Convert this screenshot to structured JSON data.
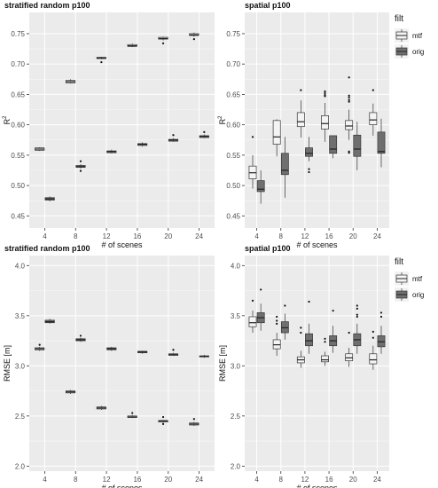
{
  "figure": {
    "x_values": [
      4,
      8,
      12,
      16,
      20,
      24
    ],
    "xlabel": "# of scenes",
    "legend_title": "filt",
    "series_names": [
      "mtf",
      "orig"
    ],
    "series_colors": {
      "mtf": "#f4f4f4",
      "orig": "#6f6f6f"
    },
    "panel_background": "#ebebeb",
    "grid_color": "#ffffff"
  },
  "chart_data": [
    {
      "type": "box",
      "title": "stratified random p100",
      "ylabel": "R",
      "ylabel_superscript": "2",
      "xlabel": "# of scenes",
      "ylim": [
        0.43,
        0.785
      ],
      "yticks": [
        0.45,
        0.5,
        0.55,
        0.6,
        0.65,
        0.7,
        0.75
      ],
      "ytick_labels": [
        "0.45",
        "0.50",
        "0.55",
        "0.60",
        "0.65",
        "0.70",
        "0.75"
      ],
      "xticks": [
        "4",
        "8",
        "12",
        "16",
        "20",
        "24"
      ],
      "legend": false,
      "series": [
        {
          "name": "mtf",
          "boxes": [
            {
              "x": 4,
              "min": 0.557,
              "q1": 0.558,
              "median": 0.56,
              "q3": 0.562,
              "max": 0.563,
              "outliers": []
            },
            {
              "x": 8,
              "min": 0.668,
              "q1": 0.669,
              "median": 0.671,
              "q3": 0.673,
              "max": 0.675,
              "outliers": []
            },
            {
              "x": 12,
              "min": 0.708,
              "q1": 0.709,
              "median": 0.71,
              "q3": 0.711,
              "max": 0.712,
              "outliers": [
                0.703
              ]
            },
            {
              "x": 16,
              "min": 0.728,
              "q1": 0.729,
              "median": 0.73,
              "q3": 0.732,
              "max": 0.734,
              "outliers": []
            },
            {
              "x": 20,
              "min": 0.739,
              "q1": 0.741,
              "median": 0.742,
              "q3": 0.744,
              "max": 0.745,
              "outliers": [
                0.734
              ]
            },
            {
              "x": 24,
              "min": 0.745,
              "q1": 0.747,
              "median": 0.748,
              "q3": 0.75,
              "max": 0.752,
              "outliers": [
                0.741
              ]
            }
          ]
        },
        {
          "name": "orig",
          "boxes": [
            {
              "x": 4,
              "min": 0.474,
              "q1": 0.476,
              "median": 0.478,
              "q3": 0.48,
              "max": 0.482,
              "outliers": []
            },
            {
              "x": 8,
              "min": 0.528,
              "q1": 0.53,
              "median": 0.531,
              "q3": 0.533,
              "max": 0.535,
              "outliers": [
                0.54,
                0.524
              ]
            },
            {
              "x": 12,
              "min": 0.553,
              "q1": 0.554,
              "median": 0.556,
              "q3": 0.557,
              "max": 0.559,
              "outliers": []
            },
            {
              "x": 16,
              "min": 0.564,
              "q1": 0.566,
              "median": 0.568,
              "q3": 0.569,
              "max": 0.571,
              "outliers": []
            },
            {
              "x": 20,
              "min": 0.572,
              "q1": 0.573,
              "median": 0.575,
              "q3": 0.576,
              "max": 0.578,
              "outliers": [
                0.583
              ]
            },
            {
              "x": 24,
              "min": 0.578,
              "q1": 0.579,
              "median": 0.581,
              "q3": 0.582,
              "max": 0.584,
              "outliers": [
                0.588
              ]
            }
          ]
        }
      ]
    },
    {
      "type": "box",
      "title": "spatial p100",
      "ylabel": "R",
      "ylabel_superscript": "2",
      "xlabel": "# of scenes",
      "ylim": [
        0.43,
        0.785
      ],
      "yticks": [
        0.45,
        0.5,
        0.55,
        0.6,
        0.65,
        0.7,
        0.75
      ],
      "ytick_labels": [
        "0.45",
        "0.50",
        "0.55",
        "0.60",
        "0.65",
        "0.70",
        "0.75"
      ],
      "xticks": [
        "4",
        "8",
        "12",
        "16",
        "20",
        "24"
      ],
      "legend": true,
      "series": [
        {
          "name": "mtf",
          "boxes": [
            {
              "x": 4,
              "min": 0.495,
              "q1": 0.511,
              "median": 0.521,
              "q3": 0.532,
              "max": 0.55,
              "outliers": [
                0.58
              ]
            },
            {
              "x": 8,
              "min": 0.548,
              "q1": 0.568,
              "median": 0.58,
              "q3": 0.607,
              "max": 0.609,
              "outliers": []
            },
            {
              "x": 12,
              "min": 0.579,
              "q1": 0.597,
              "median": 0.605,
              "q3": 0.62,
              "max": 0.64,
              "outliers": [
                0.657
              ]
            },
            {
              "x": 16,
              "min": 0.572,
              "q1": 0.593,
              "median": 0.602,
              "q3": 0.615,
              "max": 0.636,
              "outliers": [
                0.655,
                0.652,
                0.649,
                0.647
              ]
            },
            {
              "x": 20,
              "min": 0.575,
              "q1": 0.592,
              "median": 0.598,
              "q3": 0.607,
              "max": 0.625,
              "outliers": [
                0.678,
                0.648,
                0.645,
                0.641,
                0.638,
                0.556,
                0.554
              ]
            },
            {
              "x": 24,
              "min": 0.582,
              "q1": 0.6,
              "median": 0.608,
              "q3": 0.62,
              "max": 0.635,
              "outliers": [
                0.657
              ]
            }
          ]
        },
        {
          "name": "orig",
          "boxes": [
            {
              "x": 4,
              "min": 0.47,
              "q1": 0.49,
              "median": 0.494,
              "q3": 0.508,
              "max": 0.525,
              "outliers": []
            },
            {
              "x": 8,
              "min": 0.48,
              "q1": 0.518,
              "median": 0.525,
              "q3": 0.553,
              "max": 0.58,
              "outliers": []
            },
            {
              "x": 12,
              "min": 0.54,
              "q1": 0.548,
              "median": 0.553,
              "q3": 0.562,
              "max": 0.58,
              "outliers": [
                0.527,
                0.522
              ]
            },
            {
              "x": 16,
              "min": 0.545,
              "q1": 0.553,
              "median": 0.56,
              "q3": 0.582,
              "max": 0.582,
              "outliers": []
            },
            {
              "x": 20,
              "min": 0.525,
              "q1": 0.548,
              "median": 0.56,
              "q3": 0.583,
              "max": 0.605,
              "outliers": []
            },
            {
              "x": 24,
              "min": 0.53,
              "q1": 0.553,
              "median": 0.556,
              "q3": 0.588,
              "max": 0.61,
              "outliers": []
            }
          ]
        }
      ]
    },
    {
      "type": "box",
      "title": "stratified random p100",
      "ylabel": "RMSE [m]",
      "xlabel": "# of scenes",
      "ylim": [
        1.95,
        4.1
      ],
      "yticks": [
        2.0,
        2.5,
        3.0,
        3.5,
        4.0
      ],
      "ytick_labels": [
        "2.0",
        "2.5",
        "3.0",
        "3.5",
        "4.0"
      ],
      "xticks": [
        "4",
        "8",
        "12",
        "16",
        "20",
        "24"
      ],
      "legend": false,
      "series": [
        {
          "name": "mtf",
          "boxes": [
            {
              "x": 4,
              "min": 3.15,
              "q1": 3.16,
              "median": 3.17,
              "q3": 3.18,
              "max": 3.19,
              "outliers": [
                3.21
              ]
            },
            {
              "x": 8,
              "min": 2.72,
              "q1": 2.73,
              "median": 2.74,
              "q3": 2.75,
              "max": 2.76,
              "outliers": []
            },
            {
              "x": 12,
              "min": 2.56,
              "q1": 2.57,
              "median": 2.58,
              "q3": 2.59,
              "max": 2.6,
              "outliers": []
            },
            {
              "x": 16,
              "min": 2.48,
              "q1": 2.485,
              "median": 2.49,
              "q3": 2.5,
              "max": 2.51,
              "outliers": [
                2.53
              ]
            },
            {
              "x": 20,
              "min": 2.43,
              "q1": 2.44,
              "median": 2.45,
              "q3": 2.455,
              "max": 2.46,
              "outliers": [
                2.49,
                2.42
              ]
            },
            {
              "x": 24,
              "min": 2.4,
              "q1": 2.41,
              "median": 2.42,
              "q3": 2.43,
              "max": 2.44,
              "outliers": [
                2.47
              ]
            }
          ]
        },
        {
          "name": "orig",
          "boxes": [
            {
              "x": 4,
              "min": 3.42,
              "q1": 3.43,
              "median": 3.44,
              "q3": 3.455,
              "max": 3.47,
              "outliers": []
            },
            {
              "x": 8,
              "min": 3.24,
              "q1": 3.25,
              "median": 3.26,
              "q3": 3.27,
              "max": 3.28,
              "outliers": [
                3.3
              ]
            },
            {
              "x": 12,
              "min": 3.15,
              "q1": 3.16,
              "median": 3.17,
              "q3": 3.18,
              "max": 3.19,
              "outliers": []
            },
            {
              "x": 16,
              "min": 3.12,
              "q1": 3.13,
              "median": 3.14,
              "q3": 3.145,
              "max": 3.15,
              "outliers": []
            },
            {
              "x": 20,
              "min": 3.1,
              "q1": 3.105,
              "median": 3.11,
              "q3": 3.12,
              "max": 3.13,
              "outliers": [
                3.16
              ]
            },
            {
              "x": 24,
              "min": 3.08,
              "q1": 3.09,
              "median": 3.095,
              "q3": 3.1,
              "max": 3.11,
              "outliers": []
            }
          ]
        }
      ]
    },
    {
      "type": "box",
      "title": "spatial p100",
      "ylabel": "RMSE [m]",
      "xlabel": "# of scenes",
      "ylim": [
        1.95,
        4.1
      ],
      "yticks": [
        2.0,
        2.5,
        3.0,
        3.5,
        4.0
      ],
      "ytick_labels": [
        "2.0",
        "2.5",
        "3.0",
        "3.5",
        "4.0"
      ],
      "xticks": [
        "4",
        "8",
        "12",
        "16",
        "20",
        "24"
      ],
      "legend": true,
      "series": [
        {
          "name": "mtf",
          "boxes": [
            {
              "x": 4,
              "min": 3.33,
              "q1": 3.39,
              "median": 3.43,
              "q3": 3.49,
              "max": 3.55,
              "outliers": [
                3.65
              ]
            },
            {
              "x": 8,
              "min": 3.1,
              "q1": 3.17,
              "median": 3.21,
              "q3": 3.26,
              "max": 3.33,
              "outliers": [
                3.49,
                3.45,
                3.42
              ]
            },
            {
              "x": 12,
              "min": 2.98,
              "q1": 3.03,
              "median": 3.06,
              "q3": 3.09,
              "max": 3.15,
              "outliers": [
                3.38,
                3.33
              ]
            },
            {
              "x": 16,
              "min": 3.0,
              "q1": 3.04,
              "median": 3.06,
              "q3": 3.1,
              "max": 3.14,
              "outliers": [
                3.27,
                3.24
              ]
            },
            {
              "x": 20,
              "min": 2.99,
              "q1": 3.05,
              "median": 3.08,
              "q3": 3.12,
              "max": 3.18,
              "outliers": [
                3.33
              ]
            },
            {
              "x": 24,
              "min": 2.96,
              "q1": 3.02,
              "median": 3.06,
              "q3": 3.12,
              "max": 3.2,
              "outliers": [
                3.34,
                3.28
              ]
            }
          ]
        },
        {
          "name": "orig",
          "boxes": [
            {
              "x": 4,
              "min": 3.35,
              "q1": 3.43,
              "median": 3.48,
              "q3": 3.53,
              "max": 3.62,
              "outliers": [
                3.76
              ]
            },
            {
              "x": 8,
              "min": 3.26,
              "q1": 3.33,
              "median": 3.38,
              "q3": 3.44,
              "max": 3.52,
              "outliers": [
                3.6
              ]
            },
            {
              "x": 12,
              "min": 3.12,
              "q1": 3.2,
              "median": 3.25,
              "q3": 3.32,
              "max": 3.42,
              "outliers": [
                3.64
              ]
            },
            {
              "x": 16,
              "min": 3.13,
              "q1": 3.2,
              "median": 3.25,
              "q3": 3.3,
              "max": 3.4,
              "outliers": [
                3.55
              ]
            },
            {
              "x": 20,
              "min": 3.12,
              "q1": 3.2,
              "median": 3.26,
              "q3": 3.32,
              "max": 3.42,
              "outliers": [
                3.6,
                3.57,
                3.51,
                3.49
              ]
            },
            {
              "x": 24,
              "min": 3.12,
              "q1": 3.19,
              "median": 3.24,
              "q3": 3.3,
              "max": 3.4,
              "outliers": [
                3.53,
                3.49
              ]
            }
          ]
        }
      ]
    }
  ]
}
